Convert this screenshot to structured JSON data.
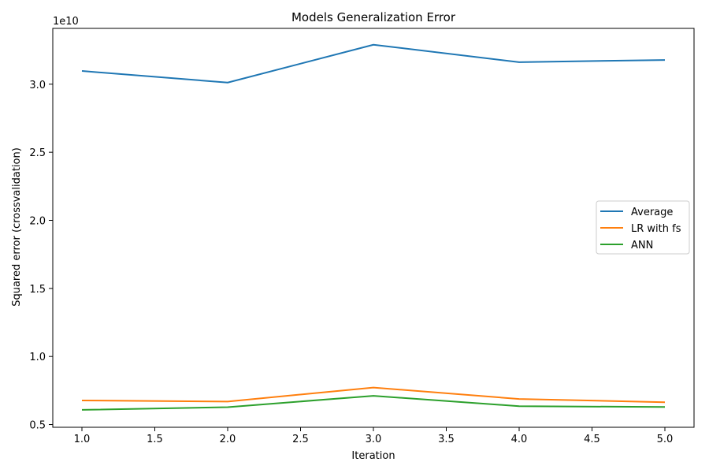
{
  "chart_data": {
    "type": "line",
    "title": "Models Generalization Error",
    "xlabel": "Iteration",
    "ylabel": "Squared error (crossvalidation)",
    "y_offset_label": "1e10",
    "y_scale_factor": 10000000000,
    "x": [
      1.0,
      2.0,
      3.0,
      4.0,
      5.0
    ],
    "xlim": [
      0.8,
      5.2
    ],
    "ylim": [
      4.8,
      34.1
    ],
    "x_ticks": [
      1.0,
      1.5,
      2.0,
      2.5,
      3.0,
      3.5,
      4.0,
      4.5,
      5.0
    ],
    "x_tick_labels": [
      "1.0",
      "1.5",
      "2.0",
      "2.5",
      "3.0",
      "3.5",
      "4.0",
      "4.5",
      "5.0"
    ],
    "y_ticks": [
      5.0,
      10.0,
      15.0,
      20.0,
      25.0,
      30.0
    ],
    "y_tick_labels": [
      "0.5",
      "1.0",
      "1.5",
      "2.0",
      "2.5",
      "3.0"
    ],
    "grid": false,
    "legend_position": "center-right",
    "series": [
      {
        "name": "Average",
        "color": "#1f77b4",
        "values": [
          30.97,
          30.12,
          32.9,
          31.62,
          31.78
        ]
      },
      {
        "name": "LR with fs",
        "color": "#ff7f0e",
        "values": [
          6.77,
          6.69,
          7.72,
          6.88,
          6.64
        ]
      },
      {
        "name": "ANN",
        "color": "#2ca02c",
        "values": [
          6.08,
          6.28,
          7.11,
          6.35,
          6.29
        ]
      }
    ]
  }
}
